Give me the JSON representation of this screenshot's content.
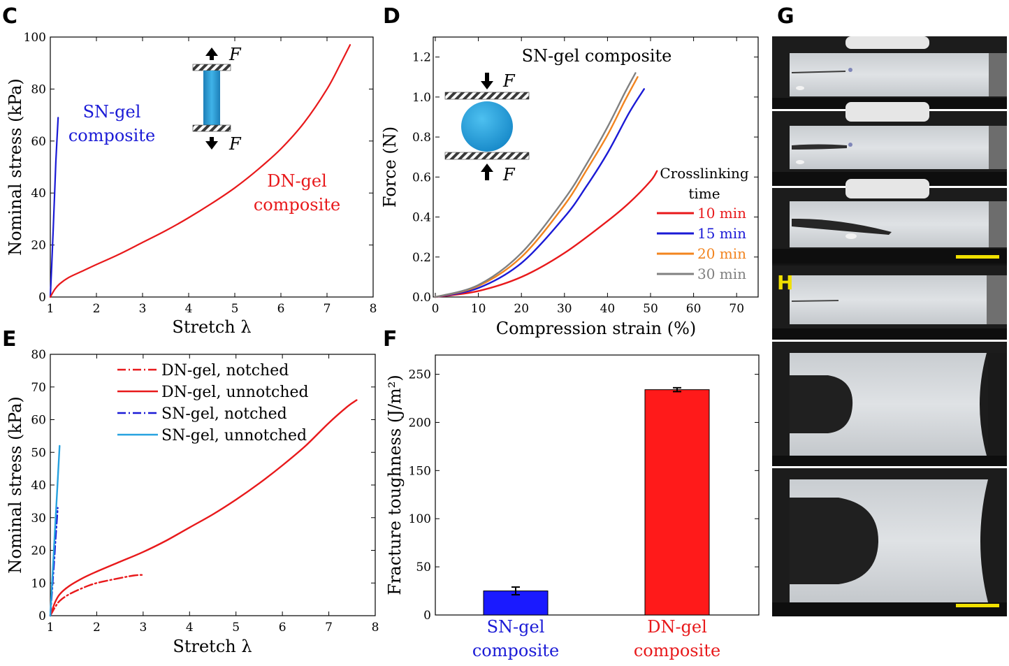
{
  "panels": {
    "C": "C",
    "D": "D",
    "E": "E",
    "F": "F",
    "G": "G",
    "H": "H"
  },
  "colors": {
    "red": "#e8191b",
    "blue": "#1a1ad6",
    "orange": "#f2841e",
    "gray": "#808080",
    "lightblue": "#27a2e0",
    "bar_blue": "#1a1aff",
    "bar_red": "#ff1a1a"
  },
  "annotations": {
    "C_sn_line1": "SN-gel",
    "C_sn_line2": "composite",
    "C_dn_line1": "DN-gel",
    "C_dn_line2": "composite",
    "C_force_top": "F",
    "C_force_bottom": "F",
    "D_title": "SN-gel composite",
    "D_force_top": "F",
    "D_force_bottom": "F",
    "D_legend_title1": "Crosslinking",
    "D_legend_title2": "time"
  },
  "chart_data": [
    {
      "panel": "C",
      "type": "line",
      "xlabel": "Stretch λ",
      "ylabel": "Nominal stress (kPa)",
      "xlim": [
        1,
        8
      ],
      "ylim": [
        0,
        100
      ],
      "xticks": [
        "1",
        "2",
        "3",
        "4",
        "5",
        "6",
        "7",
        "8"
      ],
      "yticks": [
        "0",
        "20",
        "40",
        "60",
        "80",
        "100"
      ],
      "series": [
        {
          "color": "blue",
          "x": [
            1.0,
            1.03,
            1.06,
            1.09,
            1.12,
            1.17
          ],
          "y": [
            0,
            12,
            25,
            38,
            52,
            69
          ]
        },
        {
          "color": "red",
          "x": [
            1.0,
            1.1,
            1.2,
            1.4,
            1.7,
            2.0,
            2.5,
            3.0,
            3.5,
            4.0,
            4.5,
            5.0,
            5.5,
            6.0,
            6.5,
            7.0,
            7.3,
            7.5
          ],
          "y": [
            0,
            3,
            5,
            7.5,
            10,
            12.5,
            16.5,
            21,
            25.5,
            30.5,
            36,
            42,
            49,
            57,
            67,
            80,
            90,
            97
          ]
        }
      ]
    },
    {
      "panel": "D",
      "type": "line",
      "xlabel": "Compression strain (%)",
      "ylabel": "Force (N)",
      "xlim": [
        0,
        75
      ],
      "ylim": [
        0,
        1.3
      ],
      "xticks": [
        "0",
        "10",
        "20",
        "30",
        "40",
        "50",
        "60",
        "70"
      ],
      "yticks": [
        "0.0",
        "0.2",
        "0.4",
        "0.6",
        "0.8",
        "1.0",
        "1.2"
      ],
      "legend_title": "Crosslinking time",
      "series": [
        {
          "name": "10 min",
          "color": "red",
          "x": [
            0,
            10,
            20,
            30,
            40,
            45,
            50,
            51.5
          ],
          "y": [
            0,
            0.03,
            0.1,
            0.22,
            0.38,
            0.47,
            0.58,
            0.63
          ]
        },
        {
          "name": "15 min",
          "color": "blue",
          "x": [
            0,
            10,
            20,
            30,
            35,
            40,
            45,
            48.5
          ],
          "y": [
            0,
            0.045,
            0.17,
            0.4,
            0.55,
            0.72,
            0.92,
            1.04
          ]
        },
        {
          "name": "20 min",
          "color": "orange",
          "x": [
            0,
            10,
            20,
            30,
            35,
            40,
            44,
            47
          ],
          "y": [
            0,
            0.055,
            0.2,
            0.46,
            0.63,
            0.81,
            0.98,
            1.1
          ]
        },
        {
          "name": "30 min",
          "color": "gray",
          "x": [
            0,
            10,
            20,
            30,
            35,
            40,
            44,
            46.5
          ],
          "y": [
            0,
            0.06,
            0.22,
            0.49,
            0.66,
            0.85,
            1.02,
            1.12
          ]
        }
      ]
    },
    {
      "panel": "E",
      "type": "line",
      "xlabel": "Stretch λ",
      "ylabel": "Nominal stress (kPa)",
      "xlim": [
        1,
        8
      ],
      "ylim": [
        0,
        80
      ],
      "xticks": [
        "1",
        "2",
        "3",
        "4",
        "5",
        "6",
        "7",
        "8"
      ],
      "yticks": [
        "0",
        "10",
        "20",
        "30",
        "40",
        "50",
        "60",
        "70",
        "80"
      ],
      "series": [
        {
          "name": "DN-gel, notched",
          "color": "red",
          "dash": true,
          "x": [
            1.0,
            1.1,
            1.2,
            1.4,
            1.7,
            2.0,
            2.5,
            2.8,
            3.0
          ],
          "y": [
            0,
            2.5,
            4.5,
            6.5,
            8.5,
            10,
            11.5,
            12.3,
            12.5
          ]
        },
        {
          "name": "DN-gel, unnotched",
          "color": "red",
          "dash": false,
          "x": [
            1.0,
            1.1,
            1.2,
            1.4,
            1.7,
            2.0,
            2.5,
            3.0,
            3.5,
            4.0,
            4.5,
            5.0,
            5.5,
            6.0,
            6.5,
            7.0,
            7.4,
            7.6
          ],
          "y": [
            0,
            4,
            6.5,
            9,
            11.5,
            13.5,
            16.5,
            19.5,
            23,
            27,
            31,
            35.5,
            40.5,
            46,
            52,
            59,
            64,
            66
          ]
        },
        {
          "name": "SN-gel, notched",
          "color": "blue",
          "dash": true,
          "x": [
            1.0,
            1.04,
            1.08,
            1.12,
            1.16
          ],
          "y": [
            0,
            8,
            16,
            25,
            33
          ]
        },
        {
          "name": "SN-gel, unnotched",
          "color": "lightblue",
          "dash": false,
          "x": [
            1.0,
            1.05,
            1.1,
            1.15,
            1.2
          ],
          "y": [
            0,
            13,
            26,
            39,
            52
          ]
        }
      ]
    },
    {
      "panel": "F",
      "type": "bar",
      "ylabel": "Fracture toughness (J/m²)",
      "ylim": [
        0,
        270
      ],
      "yticks": [
        "0",
        "50",
        "100",
        "150",
        "200",
        "250"
      ],
      "categories": [
        {
          "line1": "SN-gel",
          "line2": "composite",
          "color": "blue"
        },
        {
          "line1": "DN-gel",
          "line2": "composite",
          "color": "red"
        }
      ],
      "values": [
        25,
        234
      ],
      "errors": [
        4,
        2
      ]
    }
  ]
}
